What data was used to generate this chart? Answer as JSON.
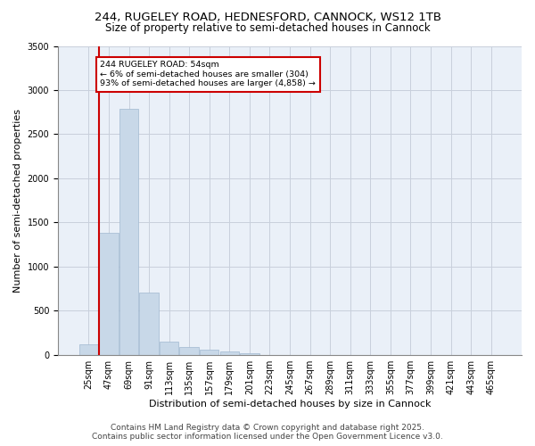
{
  "title1": "244, RUGELEY ROAD, HEDNESFORD, CANNOCK, WS12 1TB",
  "title2": "Size of property relative to semi-detached houses in Cannock",
  "xlabel": "Distribution of semi-detached houses by size in Cannock",
  "ylabel": "Number of semi-detached properties",
  "categories": [
    "25sqm",
    "47sqm",
    "69sqm",
    "91sqm",
    "113sqm",
    "135sqm",
    "157sqm",
    "179sqm",
    "201sqm",
    "223sqm",
    "245sqm",
    "267sqm",
    "289sqm",
    "311sqm",
    "333sqm",
    "355sqm",
    "377sqm",
    "399sqm",
    "421sqm",
    "443sqm",
    "465sqm"
  ],
  "values": [
    120,
    1380,
    2790,
    700,
    150,
    90,
    55,
    35,
    20,
    0,
    0,
    0,
    0,
    0,
    0,
    0,
    0,
    0,
    0,
    0,
    0
  ],
  "bar_color": "#c8d8e8",
  "bar_edge_color": "#a0b8d0",
  "vline_color": "#cc0000",
  "annotation_title": "244 RUGELEY ROAD: 54sqm",
  "annotation_line1": "← 6% of semi-detached houses are smaller (304)",
  "annotation_line2": "93% of semi-detached houses are larger (4,858) →",
  "annotation_box_color": "#ffffff",
  "annotation_box_edge": "#cc0000",
  "background_color": "#eaf0f8",
  "ylim": [
    0,
    3500
  ],
  "yticks": [
    0,
    500,
    1000,
    1500,
    2000,
    2500,
    3000,
    3500
  ],
  "footer1": "Contains HM Land Registry data © Crown copyright and database right 2025.",
  "footer2": "Contains public sector information licensed under the Open Government Licence v3.0.",
  "title1_fontsize": 9.5,
  "title2_fontsize": 8.5,
  "xlabel_fontsize": 8,
  "ylabel_fontsize": 8,
  "tick_fontsize": 7,
  "footer_fontsize": 6.5
}
